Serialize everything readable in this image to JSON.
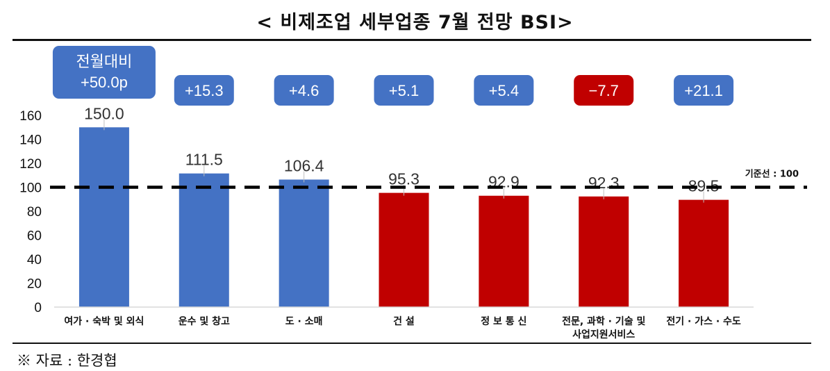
{
  "title": "< 비제조업 세부업종 7월 전망 BSI>",
  "source": "※ 자료 : 한경협",
  "colors": {
    "positive": "#4472C4",
    "negative": "#C00000",
    "reference": "#000000"
  },
  "chart_data": {
    "type": "bar",
    "categories": [
      [
        "여가 · 숙박 및 외식"
      ],
      [
        "운수 및 창고"
      ],
      [
        "도 · 소매"
      ],
      [
        "건 설"
      ],
      [
        "정 보 통 신"
      ],
      [
        "전문, 과학 · 기술 및",
        "사업지원서비스"
      ],
      [
        "전기 · 가스 · 수도"
      ]
    ],
    "values": [
      150.0,
      111.5,
      106.4,
      95.3,
      92.9,
      92.3,
      89.5
    ],
    "value_labels": [
      "150.0",
      "111.5",
      "106.4",
      "95.3",
      "92.9",
      "92.3",
      "89.5"
    ],
    "change_labels": [
      [
        "전월대비",
        "+50.0p"
      ],
      [
        "+15.3"
      ],
      [
        "+4.6"
      ],
      [
        "+5.1"
      ],
      [
        "+5.4"
      ],
      [
        "−7.7"
      ],
      [
        "+21.1"
      ]
    ],
    "change_values": [
      50.0,
      15.3,
      4.6,
      5.1,
      5.4,
      -7.7,
      21.1
    ],
    "bar_colors": [
      "#4472C4",
      "#4472C4",
      "#4472C4",
      "#C00000",
      "#C00000",
      "#C00000",
      "#C00000"
    ],
    "yticks": [
      "0",
      "20",
      "40",
      "60",
      "80",
      "100",
      "120",
      "140",
      "160"
    ],
    "ylim": [
      0,
      160
    ],
    "reference_line": {
      "value": 100,
      "label": "기준선 : 100"
    },
    "grid": false,
    "legend": "none"
  }
}
